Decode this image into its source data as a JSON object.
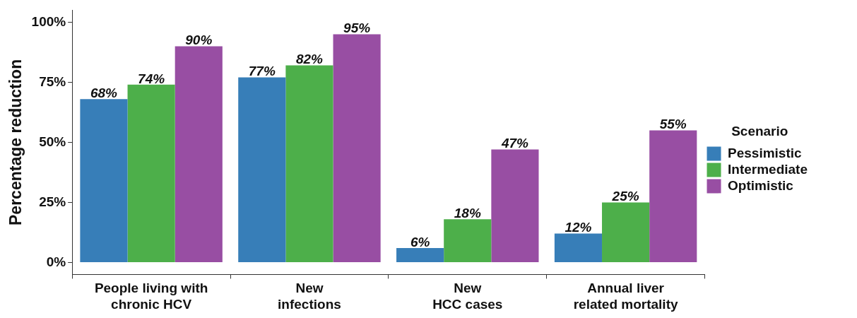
{
  "chart_data": {
    "type": "bar",
    "ylabel": "Percentage reduction",
    "legend_title": "Scenario",
    "legend": "right",
    "grid": false,
    "categories": [
      "People living with\nchronic HCV",
      "New\ninfections",
      "New\nHCC cases",
      "Annual liver\nrelated mortality"
    ],
    "ylim": [
      -5,
      105
    ],
    "yticks": [
      {
        "value": 0,
        "label": "0%"
      },
      {
        "value": 25,
        "label": "25%"
      },
      {
        "value": 50,
        "label": "50%"
      },
      {
        "value": 75,
        "label": "75%"
      },
      {
        "value": 100,
        "label": "100%"
      }
    ],
    "series": [
      {
        "name": "Pessimistic",
        "color": "#377eb8",
        "values": [
          68,
          77,
          6,
          12
        ],
        "value_labels": [
          "68%",
          "77%",
          "6%",
          "12%"
        ]
      },
      {
        "name": "Intermediate",
        "color": "#4daf4a",
        "values": [
          74,
          82,
          18,
          25
        ],
        "value_labels": [
          "74%",
          "82%",
          "18%",
          "25%"
        ]
      },
      {
        "name": "Optimistic",
        "color": "#984ea3",
        "values": [
          90,
          95,
          47,
          55
        ],
        "value_labels": [
          "90%",
          "95%",
          "47%",
          "55%"
        ]
      }
    ]
  }
}
